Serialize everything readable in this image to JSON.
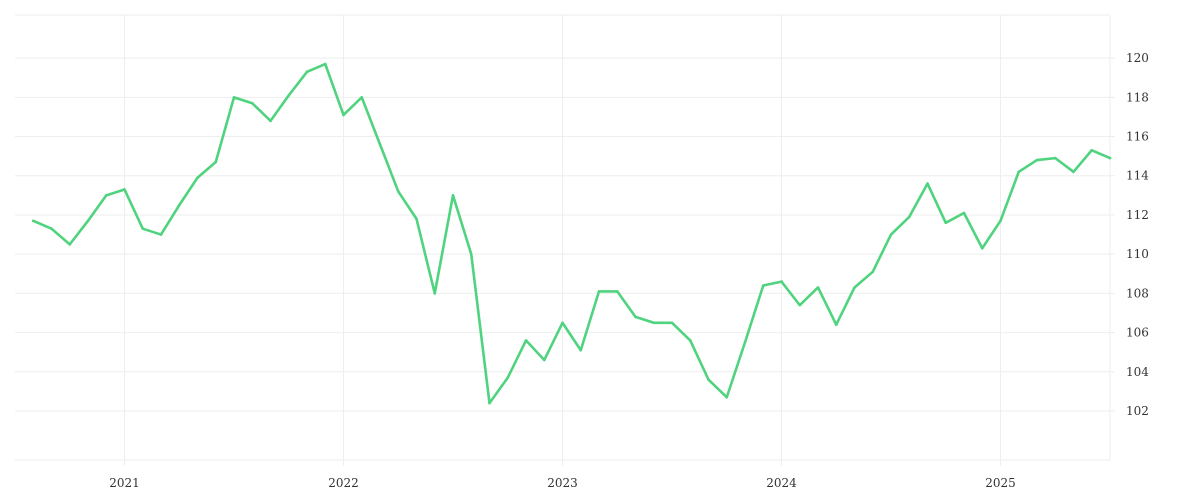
{
  "chart_data": {
    "type": "line",
    "title": "",
    "xlabel": "",
    "ylabel": "",
    "x_ticks": [
      "2021",
      "2022",
      "2023",
      "2024",
      "2025"
    ],
    "y_ticks": [
      102,
      104,
      106,
      108,
      110,
      112,
      114,
      116,
      118,
      120
    ],
    "xlim": [
      "2020-07",
      "2025-07"
    ],
    "ylim": [
      99.5,
      122.2
    ],
    "y_axis_side": "right",
    "grid": true,
    "legend": "none",
    "line_color": "#4fd37e",
    "grid_color": "#eeeeee",
    "series": [
      {
        "x": [
          "2020-08",
          "2020-09",
          "2020-10",
          "2020-11",
          "2020-12",
          "2021-01",
          "2021-02",
          "2021-03",
          "2021-04",
          "2021-05",
          "2021-06",
          "2021-07",
          "2021-08",
          "2021-09",
          "2021-10",
          "2021-11",
          "2021-12",
          "2022-01",
          "2022-02",
          "2022-03",
          "2022-04",
          "2022-05",
          "2022-06",
          "2022-07",
          "2022-08",
          "2022-09",
          "2022-10",
          "2022-11",
          "2022-12",
          "2023-01",
          "2023-02",
          "2023-03",
          "2023-04",
          "2023-05",
          "2023-06",
          "2023-07",
          "2023-08",
          "2023-09",
          "2023-10",
          "2023-11",
          "2023-12",
          "2024-01",
          "2024-02",
          "2024-03",
          "2024-04",
          "2024-05",
          "2024-06",
          "2024-07",
          "2024-08",
          "2024-09",
          "2024-10",
          "2024-11",
          "2024-12",
          "2025-01",
          "2025-02",
          "2025-03",
          "2025-04",
          "2025-05",
          "2025-06",
          "2025-07"
        ],
        "values": [
          111.7,
          111.3,
          110.5,
          111.7,
          113.0,
          113.3,
          111.3,
          111.0,
          112.5,
          113.9,
          114.7,
          118.0,
          117.7,
          116.8,
          118.1,
          119.3,
          119.7,
          117.1,
          118.0,
          115.6,
          113.2,
          111.8,
          108.0,
          113.0,
          110.0,
          102.4,
          103.7,
          105.6,
          104.6,
          106.5,
          105.1,
          108.1,
          108.1,
          106.8,
          106.5,
          106.5,
          105.6,
          103.6,
          102.7,
          105.5,
          108.4,
          108.6,
          107.4,
          108.3,
          106.4,
          108.3,
          109.1,
          111.0,
          111.9,
          113.6,
          111.6,
          112.1,
          110.3,
          111.7,
          114.2,
          114.8,
          114.9,
          114.2,
          115.3,
          114.9
        ]
      }
    ]
  }
}
